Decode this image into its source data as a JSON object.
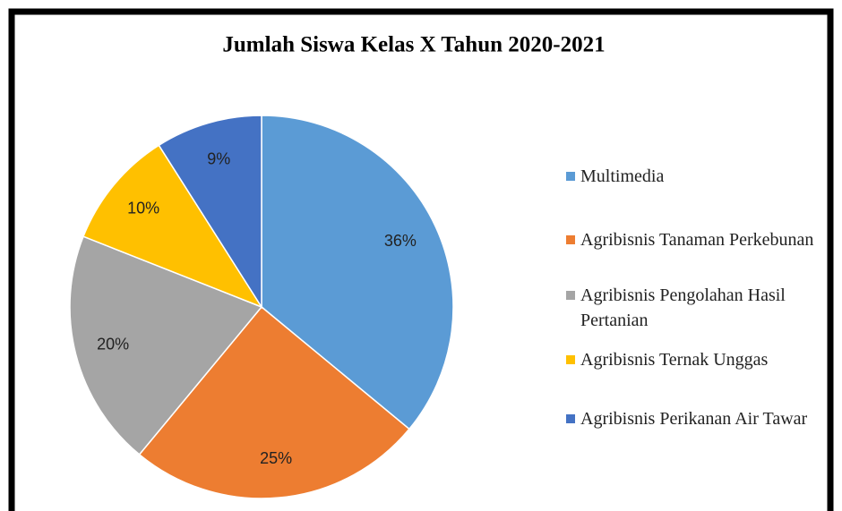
{
  "chart_data": {
    "type": "pie",
    "title": "Jumlah Siswa Kelas X Tahun 2020-2021",
    "categories": [
      "Multimedia",
      "Agribisnis Tanaman Perkebunan",
      "Agribisnis Pengolahan Hasil Pertanian",
      "Agribisnis Ternak Unggas",
      "Agribisnis Perikanan Air Tawar"
    ],
    "values": [
      36,
      25,
      20,
      10,
      9
    ],
    "value_labels": [
      "36%",
      "25%",
      "20%",
      "10%",
      "9%"
    ],
    "colors": [
      "#5b9bd5",
      "#ed7d31",
      "#a5a5a5",
      "#ffc000",
      "#4472c4"
    ],
    "legend": "right"
  }
}
